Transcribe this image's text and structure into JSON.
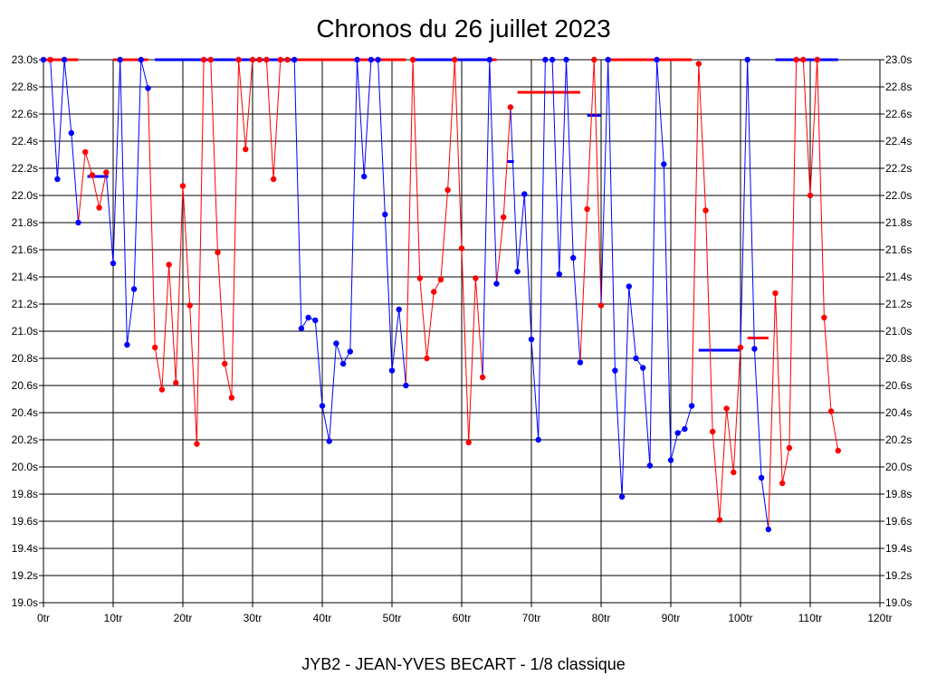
{
  "chart_data": {
    "type": "line",
    "title": "Chronos du 26 juillet 2023",
    "footer": "JYB2 - JEAN-YVES BECART - 1/8 classique",
    "xlabel": "",
    "ylabel": "",
    "xlim": [
      0,
      120
    ],
    "ylim": [
      19.0,
      23.0
    ],
    "x_ticks": [
      0,
      10,
      20,
      30,
      40,
      50,
      60,
      70,
      80,
      90,
      100,
      110,
      120
    ],
    "x_tick_labels": [
      "0tr",
      "10tr",
      "20tr",
      "30tr",
      "40tr",
      "50tr",
      "60tr",
      "70tr",
      "80tr",
      "90tr",
      "100tr",
      "110tr",
      "120tr"
    ],
    "y_ticks": [
      19.0,
      19.2,
      19.4,
      19.6,
      19.8,
      20.0,
      20.2,
      20.4,
      20.6,
      20.8,
      21.0,
      21.2,
      21.4,
      21.6,
      21.8,
      22.0,
      22.2,
      22.4,
      22.6,
      22.8,
      23.0
    ],
    "y_tick_labels": [
      "19.0s",
      "19.2s",
      "19.4s",
      "19.6s",
      "19.8s",
      "20.0s",
      "20.2s",
      "20.4s",
      "20.6s",
      "20.8s",
      "21.0s",
      "21.2s",
      "21.4s",
      "21.6s",
      "21.8s",
      "22.0s",
      "22.2s",
      "22.4s",
      "22.6s",
      "22.8s",
      "23.0s"
    ],
    "grid": true,
    "legend": "none",
    "colors": {
      "blue": "#0000ff",
      "red": "#ff0000",
      "grid": "#000000"
    },
    "points": [
      {
        "x": 0,
        "y": 23.0,
        "c": "blue"
      },
      {
        "x": 1,
        "y": 23.0,
        "c": "red"
      },
      {
        "x": 2,
        "y": 22.12,
        "c": "blue"
      },
      {
        "x": 3,
        "y": 23.0,
        "c": "blue"
      },
      {
        "x": 4,
        "y": 22.46,
        "c": "blue"
      },
      {
        "x": 5,
        "y": 21.8,
        "c": "blue"
      },
      {
        "x": 6,
        "y": 22.32,
        "c": "red"
      },
      {
        "x": 7,
        "y": 22.15,
        "c": "red"
      },
      {
        "x": 8,
        "y": 21.91,
        "c": "red"
      },
      {
        "x": 9,
        "y": 22.17,
        "c": "red"
      },
      {
        "x": 10,
        "y": 21.5,
        "c": "blue"
      },
      {
        "x": 11,
        "y": 23.0,
        "c": "blue"
      },
      {
        "x": 12,
        "y": 20.9,
        "c": "blue"
      },
      {
        "x": 13,
        "y": 21.31,
        "c": "blue"
      },
      {
        "x": 14,
        "y": 23.0,
        "c": "blue"
      },
      {
        "x": 15,
        "y": 22.79,
        "c": "blue"
      },
      {
        "x": 16,
        "y": 20.88,
        "c": "red"
      },
      {
        "x": 17,
        "y": 20.57,
        "c": "red"
      },
      {
        "x": 18,
        "y": 21.49,
        "c": "red"
      },
      {
        "x": 19,
        "y": 20.62,
        "c": "red"
      },
      {
        "x": 20,
        "y": 22.07,
        "c": "red"
      },
      {
        "x": 21,
        "y": 21.19,
        "c": "red"
      },
      {
        "x": 22,
        "y": 20.17,
        "c": "red"
      },
      {
        "x": 23,
        "y": 23.0,
        "c": "red"
      },
      {
        "x": 24,
        "y": 23.0,
        "c": "red"
      },
      {
        "x": 25,
        "y": 21.58,
        "c": "red"
      },
      {
        "x": 26,
        "y": 20.76,
        "c": "red"
      },
      {
        "x": 27,
        "y": 20.51,
        "c": "red"
      },
      {
        "x": 28,
        "y": 23.0,
        "c": "red"
      },
      {
        "x": 29,
        "y": 22.34,
        "c": "red"
      },
      {
        "x": 30,
        "y": 23.0,
        "c": "red"
      },
      {
        "x": 31,
        "y": 23.0,
        "c": "red"
      },
      {
        "x": 32,
        "y": 23.0,
        "c": "red"
      },
      {
        "x": 33,
        "y": 22.12,
        "c": "red"
      },
      {
        "x": 34,
        "y": 23.0,
        "c": "red"
      },
      {
        "x": 35,
        "y": 23.0,
        "c": "red"
      },
      {
        "x": 36,
        "y": 23.0,
        "c": "blue"
      },
      {
        "x": 37,
        "y": 21.02,
        "c": "blue"
      },
      {
        "x": 38,
        "y": 21.1,
        "c": "blue"
      },
      {
        "x": 39,
        "y": 21.08,
        "c": "blue"
      },
      {
        "x": 40,
        "y": 20.45,
        "c": "blue"
      },
      {
        "x": 41,
        "y": 20.19,
        "c": "blue"
      },
      {
        "x": 42,
        "y": 20.91,
        "c": "blue"
      },
      {
        "x": 43,
        "y": 20.76,
        "c": "blue"
      },
      {
        "x": 44,
        "y": 20.85,
        "c": "blue"
      },
      {
        "x": 45,
        "y": 23.0,
        "c": "blue"
      },
      {
        "x": 46,
        "y": 22.14,
        "c": "blue"
      },
      {
        "x": 47,
        "y": 23.0,
        "c": "blue"
      },
      {
        "x": 48,
        "y": 23.0,
        "c": "blue"
      },
      {
        "x": 49,
        "y": 21.86,
        "c": "blue"
      },
      {
        "x": 50,
        "y": 20.71,
        "c": "blue"
      },
      {
        "x": 51,
        "y": 21.16,
        "c": "blue"
      },
      {
        "x": 52,
        "y": 20.6,
        "c": "blue"
      },
      {
        "x": 53,
        "y": 23.0,
        "c": "red"
      },
      {
        "x": 54,
        "y": 21.39,
        "c": "red"
      },
      {
        "x": 55,
        "y": 20.8,
        "c": "red"
      },
      {
        "x": 56,
        "y": 21.29,
        "c": "red"
      },
      {
        "x": 57,
        "y": 21.38,
        "c": "red"
      },
      {
        "x": 58,
        "y": 22.04,
        "c": "red"
      },
      {
        "x": 59,
        "y": 23.0,
        "c": "red"
      },
      {
        "x": 60,
        "y": 21.61,
        "c": "red"
      },
      {
        "x": 61,
        "y": 20.18,
        "c": "red"
      },
      {
        "x": 62,
        "y": 21.39,
        "c": "red"
      },
      {
        "x": 63,
        "y": 20.66,
        "c": "red"
      },
      {
        "x": 64,
        "y": 23.0,
        "c": "blue"
      },
      {
        "x": 65,
        "y": 21.35,
        "c": "blue"
      },
      {
        "x": 66,
        "y": 21.84,
        "c": "red"
      },
      {
        "x": 67,
        "y": 22.65,
        "c": "red"
      },
      {
        "x": 68,
        "y": 21.44,
        "c": "blue"
      },
      {
        "x": 69,
        "y": 22.01,
        "c": "blue"
      },
      {
        "x": 70,
        "y": 20.94,
        "c": "blue"
      },
      {
        "x": 71,
        "y": 20.2,
        "c": "blue"
      },
      {
        "x": 72,
        "y": 23.0,
        "c": "blue"
      },
      {
        "x": 73,
        "y": 23.0,
        "c": "blue"
      },
      {
        "x": 74,
        "y": 21.42,
        "c": "blue"
      },
      {
        "x": 75,
        "y": 23.0,
        "c": "blue"
      },
      {
        "x": 76,
        "y": 21.54,
        "c": "blue"
      },
      {
        "x": 77,
        "y": 20.77,
        "c": "blue"
      },
      {
        "x": 78,
        "y": 21.9,
        "c": "red"
      },
      {
        "x": 79,
        "y": 23.0,
        "c": "red"
      },
      {
        "x": 80,
        "y": 21.19,
        "c": "red"
      },
      {
        "x": 81,
        "y": 23.0,
        "c": "blue"
      },
      {
        "x": 82,
        "y": 20.71,
        "c": "blue"
      },
      {
        "x": 83,
        "y": 19.78,
        "c": "blue"
      },
      {
        "x": 84,
        "y": 21.33,
        "c": "blue"
      },
      {
        "x": 85,
        "y": 20.8,
        "c": "blue"
      },
      {
        "x": 86,
        "y": 20.73,
        "c": "blue"
      },
      {
        "x": 87,
        "y": 20.01,
        "c": "blue"
      },
      {
        "x": 88,
        "y": 23.0,
        "c": "blue"
      },
      {
        "x": 89,
        "y": 22.23,
        "c": "blue"
      },
      {
        "x": 90,
        "y": 20.05,
        "c": "blue"
      },
      {
        "x": 91,
        "y": 20.25,
        "c": "blue"
      },
      {
        "x": 92,
        "y": 20.28,
        "c": "blue"
      },
      {
        "x": 93,
        "y": 20.45,
        "c": "blue"
      },
      {
        "x": 94,
        "y": 22.97,
        "c": "red"
      },
      {
        "x": 95,
        "y": 21.89,
        "c": "red"
      },
      {
        "x": 96,
        "y": 20.26,
        "c": "red"
      },
      {
        "x": 97,
        "y": 19.61,
        "c": "red"
      },
      {
        "x": 98,
        "y": 20.43,
        "c": "red"
      },
      {
        "x": 99,
        "y": 19.96,
        "c": "red"
      },
      {
        "x": 100,
        "y": 20.88,
        "c": "red"
      },
      {
        "x": 101,
        "y": 23.0,
        "c": "blue"
      },
      {
        "x": 102,
        "y": 20.87,
        "c": "blue"
      },
      {
        "x": 103,
        "y": 19.92,
        "c": "blue"
      },
      {
        "x": 104,
        "y": 19.54,
        "c": "blue"
      },
      {
        "x": 105,
        "y": 21.28,
        "c": "red"
      },
      {
        "x": 106,
        "y": 19.88,
        "c": "red"
      },
      {
        "x": 107,
        "y": 20.14,
        "c": "red"
      },
      {
        "x": 108,
        "y": 23.0,
        "c": "red"
      },
      {
        "x": 109,
        "y": 23.0,
        "c": "red"
      },
      {
        "x": 110,
        "y": 22.0,
        "c": "red"
      },
      {
        "x": 111,
        "y": 23.0,
        "c": "red"
      },
      {
        "x": 112,
        "y": 21.1,
        "c": "red"
      },
      {
        "x": 113,
        "y": 20.41,
        "c": "red"
      },
      {
        "x": 114,
        "y": 20.12,
        "c": "red"
      }
    ],
    "average_segments": [
      {
        "x1": 0,
        "x2": 5,
        "y": 23.0,
        "c": "red"
      },
      {
        "x1": 6.3,
        "x2": 9.3,
        "y": 22.14,
        "c": "blue"
      },
      {
        "x1": 10,
        "x2": 15,
        "y": 23.0,
        "c": "red"
      },
      {
        "x1": 16,
        "x2": 36,
        "y": 23.0,
        "c": "blue"
      },
      {
        "x1": 36,
        "x2": 52,
        "y": 23.0,
        "c": "red"
      },
      {
        "x1": 53,
        "x2": 64,
        "y": 23.0,
        "c": "blue"
      },
      {
        "x1": 64,
        "x2": 65,
        "y": 23.0,
        "c": "red"
      },
      {
        "x1": 66.5,
        "x2": 67.5,
        "y": 22.25,
        "c": "blue"
      },
      {
        "x1": 68,
        "x2": 77,
        "y": 22.76,
        "c": "red"
      },
      {
        "x1": 78,
        "x2": 80,
        "y": 22.59,
        "c": "blue"
      },
      {
        "x1": 81,
        "x2": 93,
        "y": 23.0,
        "c": "red"
      },
      {
        "x1": 94,
        "x2": 100,
        "y": 20.86,
        "c": "blue"
      },
      {
        "x1": 101,
        "x2": 104,
        "y": 20.95,
        "c": "red"
      },
      {
        "x1": 105,
        "x2": 114,
        "y": 23.0,
        "c": "blue"
      }
    ]
  }
}
